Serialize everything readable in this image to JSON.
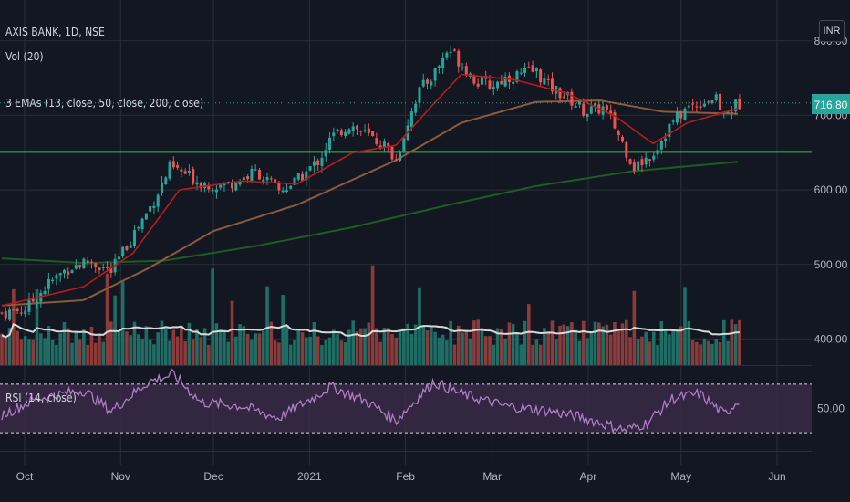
{
  "legend": {
    "symbol": "AXIS BANK, 1D, NSE",
    "volume": "Vol (20)",
    "emas": "3 EMAs (13, close, 50, close, 200, close)",
    "rsi": "RSI (14, close)"
  },
  "currency": "INR",
  "colors": {
    "background": "#131722",
    "grid": "#2a2e39",
    "up": "#26a69a",
    "down": "#ef5350",
    "up_volume": "#1e6e66",
    "down_volume": "#8c3a3a",
    "ema13": "#b71c1c",
    "ema50": "#8d5a3b",
    "ema200": "#1b5e20",
    "support": "#4caf50",
    "volume_ma": "#d8d8d8",
    "rsi_line": "#b07cc6",
    "rsi_band": "#3b2a4a",
    "last_price_line": "#26a69a"
  },
  "chart_data": {
    "type": "candlestick",
    "symbol": "AXIS BANK",
    "interval": "1D",
    "exchange": "NSE",
    "currency": "INR",
    "price_axis": {
      "ticks": [
        400.0,
        500.0,
        600.0,
        700.0,
        800.0
      ],
      "tick_labels": [
        "400.00",
        "500.00",
        "600.00",
        "700.00",
        "800.00"
      ],
      "range": [
        365,
        845
      ]
    },
    "x_axis": {
      "labels": [
        "Oct",
        "Nov",
        "Dec",
        "2021",
        "Feb",
        "Mar",
        "Apr",
        "May",
        "Jun"
      ]
    },
    "last_price": 716.8,
    "last_price_label": "716.80",
    "support_level": 651,
    "price_path": [
      {
        "date": "2020-09-24",
        "close": 435
      },
      {
        "date": "2020-10-01",
        "close": 440
      },
      {
        "date": "2020-10-09",
        "close": 475
      },
      {
        "date": "2020-10-15",
        "close": 495
      },
      {
        "date": "2020-10-22",
        "close": 505
      },
      {
        "date": "2020-10-29",
        "close": 490
      },
      {
        "date": "2020-11-05",
        "close": 540
      },
      {
        "date": "2020-11-11",
        "close": 580
      },
      {
        "date": "2020-11-17",
        "close": 630
      },
      {
        "date": "2020-11-20",
        "close": 625
      },
      {
        "date": "2020-11-27",
        "close": 610
      },
      {
        "date": "2020-12-04",
        "close": 605
      },
      {
        "date": "2020-12-10",
        "close": 615
      },
      {
        "date": "2020-12-15",
        "close": 625
      },
      {
        "date": "2020-12-22",
        "close": 598
      },
      {
        "date": "2020-12-28",
        "close": 612
      },
      {
        "date": "2021-01-04",
        "close": 640
      },
      {
        "date": "2021-01-08",
        "close": 670
      },
      {
        "date": "2021-01-14",
        "close": 688
      },
      {
        "date": "2021-01-20",
        "close": 672
      },
      {
        "date": "2021-01-25",
        "close": 660
      },
      {
        "date": "2021-01-29",
        "close": 640
      },
      {
        "date": "2021-02-02",
        "close": 695
      },
      {
        "date": "2021-02-05",
        "close": 730
      },
      {
        "date": "2021-02-10",
        "close": 755
      },
      {
        "date": "2021-02-15",
        "close": 790
      },
      {
        "date": "2021-02-19",
        "close": 770
      },
      {
        "date": "2021-02-24",
        "close": 745
      },
      {
        "date": "2021-03-01",
        "close": 740
      },
      {
        "date": "2021-03-05",
        "close": 750
      },
      {
        "date": "2021-03-10",
        "close": 755
      },
      {
        "date": "2021-03-15",
        "close": 760
      },
      {
        "date": "2021-03-19",
        "close": 740
      },
      {
        "date": "2021-03-25",
        "close": 725
      },
      {
        "date": "2021-03-31",
        "close": 705
      },
      {
        "date": "2021-04-06",
        "close": 710
      },
      {
        "date": "2021-04-09",
        "close": 690
      },
      {
        "date": "2021-04-13",
        "close": 655
      },
      {
        "date": "2021-04-16",
        "close": 630
      },
      {
        "date": "2021-04-22",
        "close": 650
      },
      {
        "date": "2021-04-28",
        "close": 690
      },
      {
        "date": "2021-05-03",
        "close": 710
      },
      {
        "date": "2021-05-07",
        "close": 718
      },
      {
        "date": "2021-05-12",
        "close": 722
      },
      {
        "date": "2021-05-15",
        "close": 700
      },
      {
        "date": "2021-05-18",
        "close": 712
      },
      {
        "date": "2021-05-20",
        "close": 716.8
      }
    ],
    "ema13_path": [
      {
        "date": "2020-09-24",
        "value": 445
      },
      {
        "date": "2020-10-20",
        "value": 470
      },
      {
        "date": "2020-11-05",
        "value": 515
      },
      {
        "date": "2020-11-20",
        "value": 600
      },
      {
        "date": "2020-12-10",
        "value": 612
      },
      {
        "date": "2020-12-28",
        "value": 608
      },
      {
        "date": "2021-01-15",
        "value": 650
      },
      {
        "date": "2021-01-29",
        "value": 660
      },
      {
        "date": "2021-02-10",
        "value": 715
      },
      {
        "date": "2021-02-19",
        "value": 755
      },
      {
        "date": "2021-03-08",
        "value": 748
      },
      {
        "date": "2021-03-25",
        "value": 730
      },
      {
        "date": "2021-04-10",
        "value": 698
      },
      {
        "date": "2021-04-22",
        "value": 662
      },
      {
        "date": "2021-05-03",
        "value": 690
      },
      {
        "date": "2021-05-20",
        "value": 710
      }
    ],
    "ema50_path": [
      {
        "date": "2020-09-24",
        "value": 445
      },
      {
        "date": "2020-10-20",
        "value": 452
      },
      {
        "date": "2020-11-10",
        "value": 495
      },
      {
        "date": "2020-12-01",
        "value": 545
      },
      {
        "date": "2020-12-28",
        "value": 580
      },
      {
        "date": "2021-01-29",
        "value": 640
      },
      {
        "date": "2021-02-19",
        "value": 690
      },
      {
        "date": "2021-03-15",
        "value": 718
      },
      {
        "date": "2021-04-05",
        "value": 720
      },
      {
        "date": "2021-04-25",
        "value": 705
      },
      {
        "date": "2021-05-20",
        "value": 702
      }
    ],
    "ema200_path": [
      {
        "date": "2020-09-24",
        "value": 508
      },
      {
        "date": "2020-10-20",
        "value": 502
      },
      {
        "date": "2020-11-15",
        "value": 505
      },
      {
        "date": "2020-12-15",
        "value": 525
      },
      {
        "date": "2021-01-15",
        "value": 550
      },
      {
        "date": "2021-02-15",
        "value": 580
      },
      {
        "date": "2021-03-15",
        "value": 605
      },
      {
        "date": "2021-04-15",
        "value": 625
      },
      {
        "date": "2021-05-20",
        "value": 638
      }
    ],
    "volume": {
      "ma_period": 20
    },
    "rsi": {
      "period": 14,
      "upper": 70,
      "lower": 30,
      "mid": 50,
      "tick_labels": [
        "50.00"
      ],
      "path": [
        {
          "date": "2020-09-24",
          "value": 45
        },
        {
          "date": "2020-10-05",
          "value": 58
        },
        {
          "date": "2020-10-20",
          "value": 65
        },
        {
          "date": "2020-10-29",
          "value": 48
        },
        {
          "date": "2020-11-10",
          "value": 72
        },
        {
          "date": "2020-11-18",
          "value": 78
        },
        {
          "date": "2020-11-27",
          "value": 55
        },
        {
          "date": "2020-12-10",
          "value": 52
        },
        {
          "date": "2020-12-22",
          "value": 42
        },
        {
          "date": "2021-01-08",
          "value": 68
        },
        {
          "date": "2021-01-20",
          "value": 55
        },
        {
          "date": "2021-01-29",
          "value": 40
        },
        {
          "date": "2021-02-10",
          "value": 72
        },
        {
          "date": "2021-02-19",
          "value": 62
        },
        {
          "date": "2021-03-05",
          "value": 52
        },
        {
          "date": "2021-03-19",
          "value": 48
        },
        {
          "date": "2021-03-31",
          "value": 42
        },
        {
          "date": "2021-04-13",
          "value": 32
        },
        {
          "date": "2021-04-20",
          "value": 38
        },
        {
          "date": "2021-04-28",
          "value": 58
        },
        {
          "date": "2021-05-07",
          "value": 62
        },
        {
          "date": "2021-05-15",
          "value": 45
        },
        {
          "date": "2021-05-20",
          "value": 58
        }
      ]
    }
  }
}
